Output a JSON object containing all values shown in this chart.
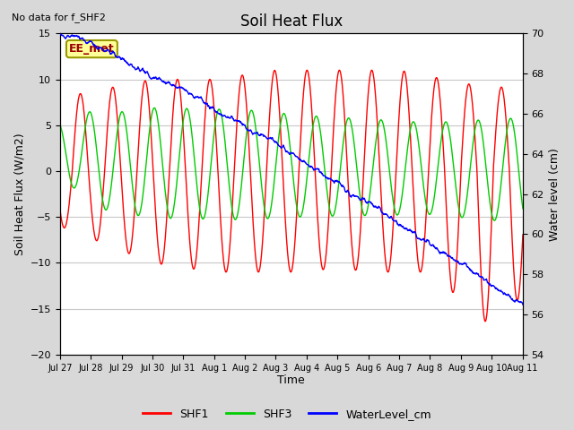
{
  "title": "Soil Heat Flux",
  "subtitle": "No data for f_SHF2",
  "xlabel": "Time",
  "ylabel_left": "Soil Heat Flux (W/m2)",
  "ylabel_right": "Water level (cm)",
  "ylim_left": [
    -20,
    15
  ],
  "ylim_right": [
    54,
    70
  ],
  "yticks_left": [
    -20,
    -15,
    -10,
    -5,
    0,
    5,
    10,
    15
  ],
  "yticks_right": [
    54,
    56,
    58,
    60,
    62,
    64,
    66,
    68,
    70
  ],
  "xtick_labels": [
    "Jul 27",
    "Jul 28",
    "Jul 29",
    "Jul 30",
    "Jul 31",
    "Aug 1",
    "Aug 2",
    "Aug 3",
    "Aug 4",
    "Aug 5",
    "Aug 6",
    "Aug 7",
    "Aug 8",
    "Aug 9",
    "Aug 10",
    "Aug 11"
  ],
  "shf1_color": "#ff0000",
  "shf3_color": "#00cc00",
  "water_color": "#0000ff",
  "fig_bg_color": "#d8d8d8",
  "plot_bg_color": "#ffffff",
  "legend_label_shf1": "SHF1",
  "legend_label_shf3": "SHF3",
  "legend_label_water": "WaterLevel_cm",
  "station_label": "EE_met",
  "station_box_facecolor": "#ffff99",
  "station_box_edgecolor": "#999900",
  "grid_color": "#c8c8c8",
  "shf1_lw": 1.0,
  "shf3_lw": 1.0,
  "water_lw": 1.0
}
